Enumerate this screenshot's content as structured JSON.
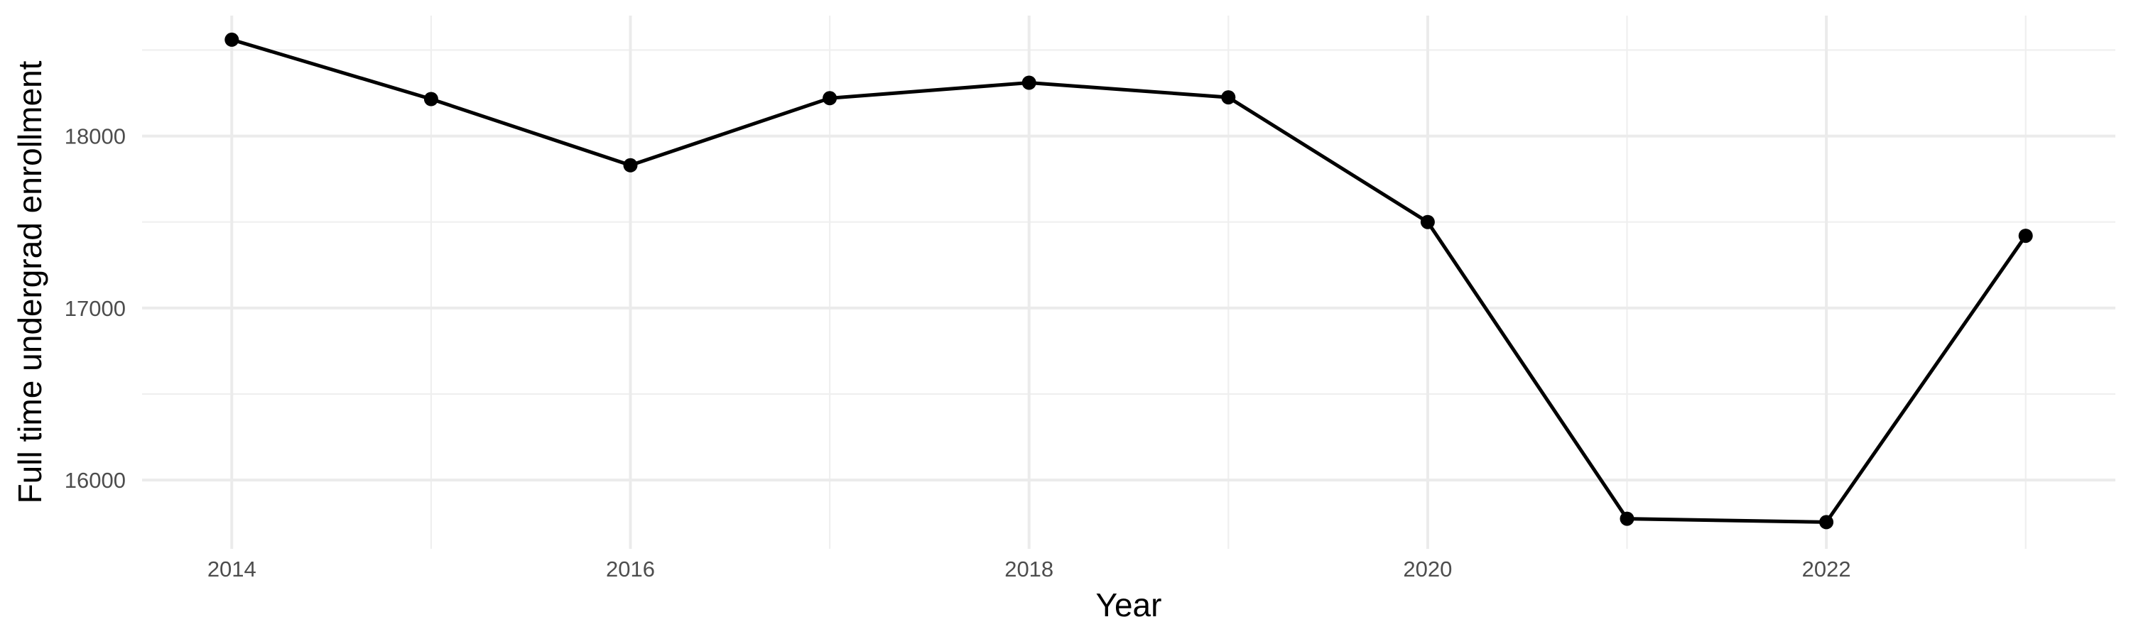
{
  "chart_data": {
    "type": "line",
    "title": "",
    "xlabel": "Year",
    "ylabel": "Full time undergrad enrollment",
    "x": [
      2014,
      2015,
      2016,
      2017,
      2018,
      2019,
      2020,
      2021,
      2022,
      2023
    ],
    "series": [
      {
        "name": "Full time undergrad enrollment",
        "values": [
          18560,
          18215,
          17830,
          18220,
          18310,
          18225,
          17500,
          15775,
          15755,
          17420
        ]
      }
    ],
    "xlim": [
      2013.55,
      2023.45
    ],
    "ylim": [
      15600,
      18700
    ],
    "x_major_ticks": [
      2014,
      2016,
      2018,
      2020,
      2022
    ],
    "x_major_tick_labels": [
      "2014",
      "2016",
      "2018",
      "2020",
      "2022"
    ],
    "x_minor_ticks": [
      2015,
      2017,
      2019,
      2021,
      2023
    ],
    "y_major_ticks": [
      16000,
      17000,
      18000
    ],
    "y_major_tick_labels": [
      "16000",
      "17000",
      "18000"
    ],
    "y_minor_ticks": [
      16500,
      17500,
      18500
    ],
    "grid": "on",
    "legend_position": "none",
    "style": {
      "background_color": "#FFFFFF",
      "grid_major_color": "#EBEBEB",
      "grid_minor_color": "#EFEFEF",
      "line_color": "#000000",
      "point_color": "#000000",
      "tick_label_color": "#4D4D4D",
      "axis_title_color": "#000000"
    }
  }
}
